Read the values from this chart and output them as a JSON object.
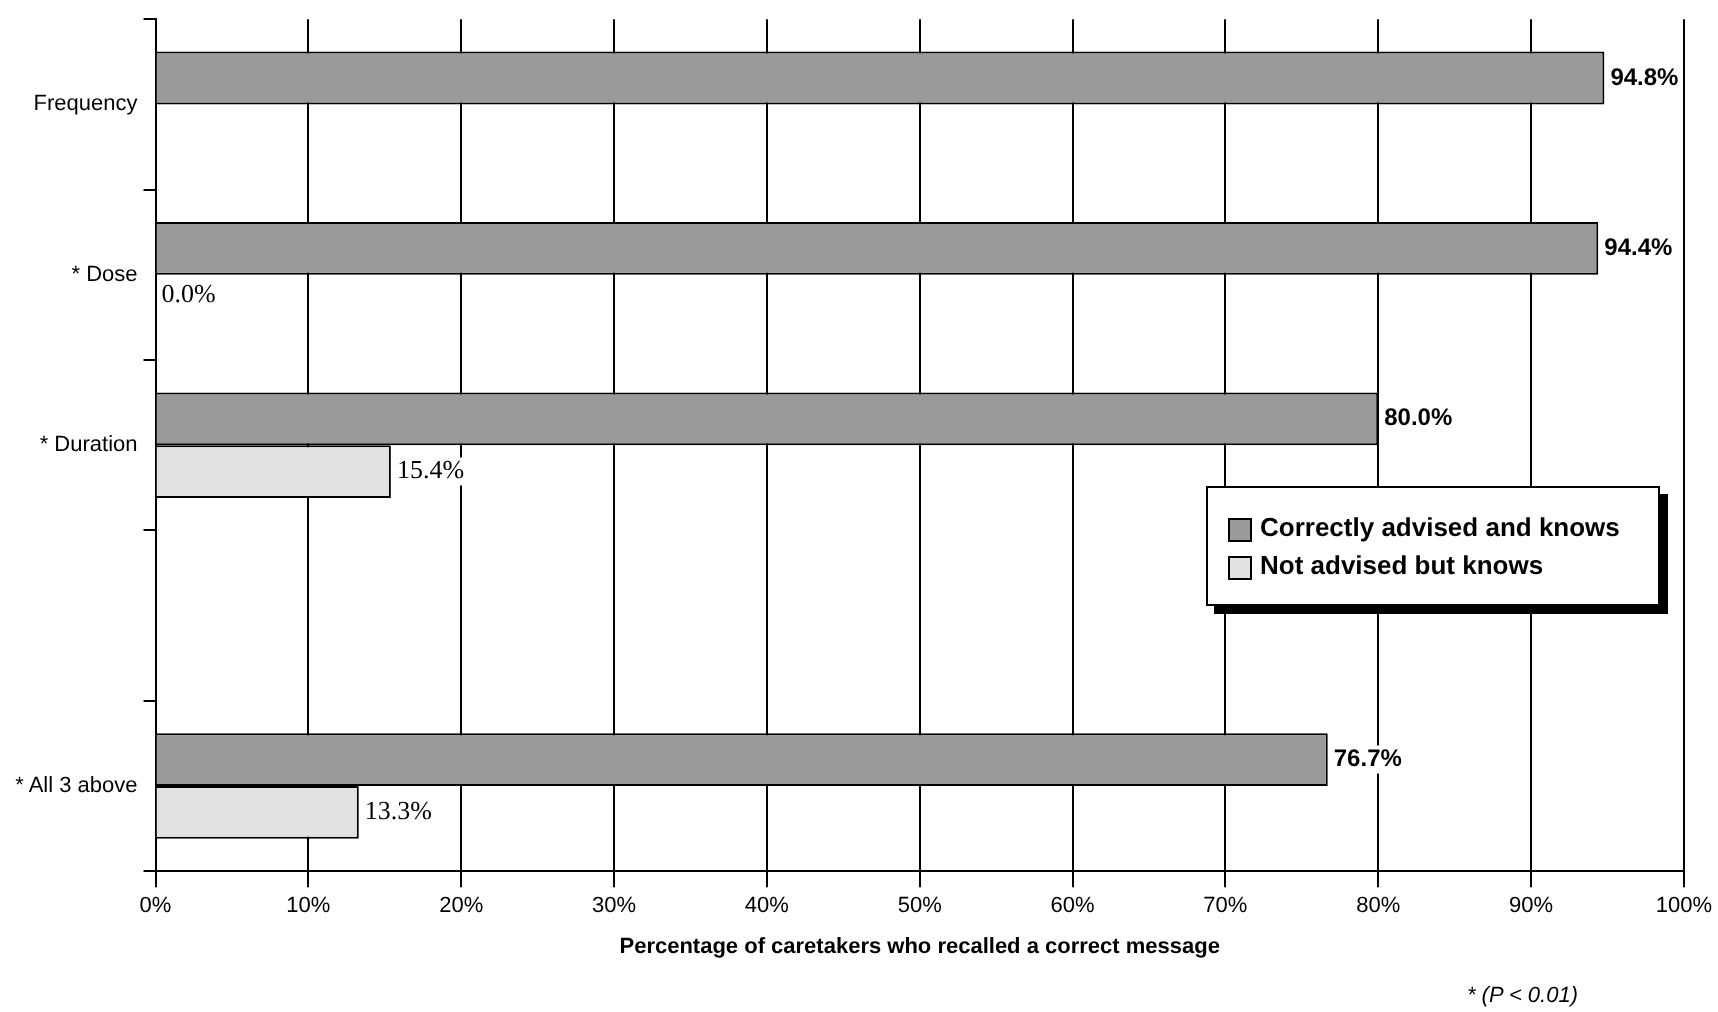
{
  "chart_data": {
    "type": "bar",
    "orientation": "horizontal",
    "xlabel": "Percentage of caretakers who recalled a correct message",
    "categories": [
      "Frequency",
      "* Dose",
      "* Duration",
      null,
      "* All 3 above"
    ],
    "series": [
      {
        "name": "Correctly advised and knows",
        "color": "#9a9a9a",
        "values": [
          94.8,
          94.4,
          80.0,
          null,
          76.7
        ],
        "value_labels": [
          "94.8%",
          "94.4%",
          "80.0%",
          null,
          "76.7%"
        ]
      },
      {
        "name": "Not advised but knows",
        "color": "#e2e2e2",
        "values": [
          null,
          0.0,
          15.4,
          null,
          13.3
        ],
        "value_labels": [
          null,
          "0.0%",
          "15.4%",
          null,
          "13.3%"
        ]
      }
    ],
    "xlim": [
      0,
      100
    ],
    "xticks": [
      {
        "value": 0,
        "label": "0%"
      },
      {
        "value": 10,
        "label": "10%"
      },
      {
        "value": 20,
        "label": "20%"
      },
      {
        "value": 30,
        "label": "30%"
      },
      {
        "value": 40,
        "label": "40%"
      },
      {
        "value": 50,
        "label": "50%"
      },
      {
        "value": 60,
        "label": "60%"
      },
      {
        "value": 70,
        "label": "70%"
      },
      {
        "value": 80,
        "label": "80%"
      },
      {
        "value": 90,
        "label": "90%"
      },
      {
        "value": 100,
        "label": "100%"
      }
    ],
    "grid": "x",
    "legend": "right",
    "annotations": [
      "*  (P < 0.01)"
    ]
  }
}
